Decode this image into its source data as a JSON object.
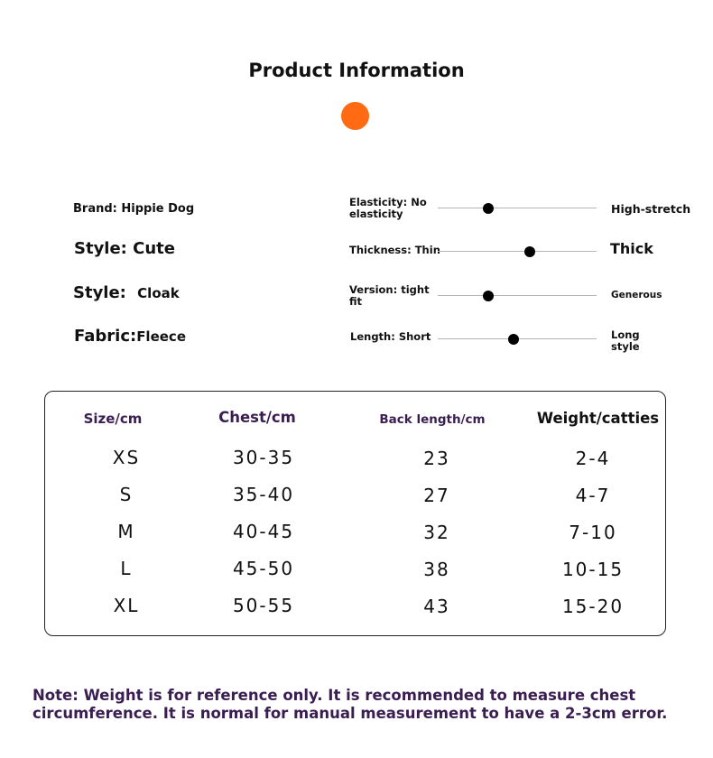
{
  "title": "Product Information",
  "accent_color": "#ff6a13",
  "attributes": {
    "brand": "Brand: Hippie Dog",
    "style_cute": "Style: Cute",
    "style_label": "Style:",
    "style_value": "Cloak",
    "fabric_label": "Fabric:",
    "fabric_value": "Fleece"
  },
  "scales": [
    {
      "left": "Elasticity: No elasticity",
      "right": "High-stretch",
      "level": 0.32
    },
    {
      "left": "Thickness: Thin",
      "right": "Thick",
      "level": 0.58
    },
    {
      "left": "Version: tight fit",
      "right": "Generous",
      "level": 0.32
    },
    {
      "left": "Length: Short",
      "right": "Long style",
      "level": 0.48
    }
  ],
  "size_table": {
    "headers": [
      "Size/cm",
      "Chest/cm",
      "Back length/cm",
      "Weight/catties"
    ],
    "rows": [
      [
        "XS",
        "30-35",
        "23",
        "2-4"
      ],
      [
        "S",
        "35-40",
        "27",
        "4-7"
      ],
      [
        "M",
        "40-45",
        "32",
        "7-10"
      ],
      [
        "L",
        "45-50",
        "38",
        "10-15"
      ],
      [
        "XL",
        "50-55",
        "43",
        "15-20"
      ]
    ]
  },
  "note": "Note: Weight is for reference only. It is recommended to measure chest circumference. It is normal for manual measurement to have a 2-3cm error."
}
